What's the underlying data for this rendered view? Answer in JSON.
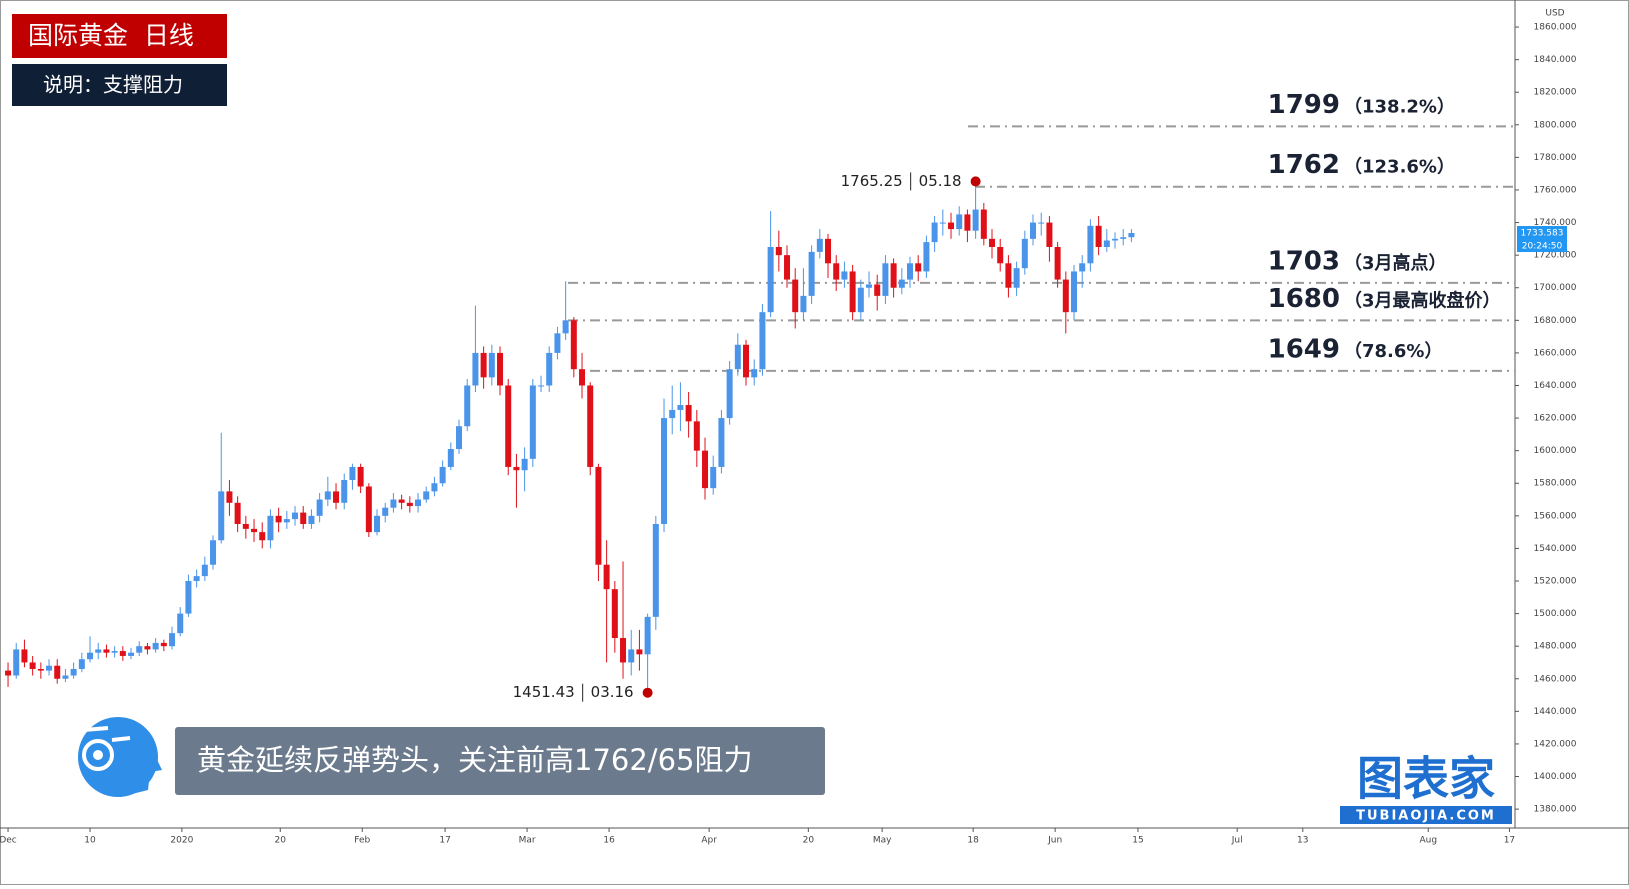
{
  "header": {
    "title": "国际黄金  日线",
    "subtitle": "说明：支撑阻力"
  },
  "chart_data": {
    "type": "candlestick",
    "currency": "USD",
    "up_color": "#4a94ea",
    "down_color": "#e01019",
    "x": [
      0,
      1,
      2,
      3,
      4,
      5,
      6,
      7,
      8,
      9,
      10,
      11,
      12,
      13,
      14,
      15,
      16,
      17,
      18,
      19,
      20,
      21,
      22,
      23,
      24,
      25,
      26,
      27,
      28,
      29,
      30,
      31,
      32,
      33,
      34,
      35,
      36,
      37,
      38,
      39,
      40,
      41,
      42,
      43,
      44,
      45,
      46,
      47,
      48,
      49,
      50,
      51,
      52,
      53,
      54,
      55,
      56,
      57,
      58,
      59,
      60,
      61,
      62,
      63,
      64,
      65,
      66,
      67,
      68,
      69,
      70,
      71,
      72,
      73,
      74,
      75,
      76,
      77,
      78,
      79,
      80,
      81,
      82,
      83,
      84,
      85,
      86,
      87,
      88,
      89,
      90,
      91,
      92,
      93,
      94,
      95,
      96,
      97,
      98,
      99,
      100,
      101,
      102,
      103,
      104,
      105,
      106,
      107,
      108,
      109,
      110,
      111,
      112,
      113,
      114,
      115,
      116,
      117,
      118,
      119,
      120,
      121,
      122,
      123,
      124,
      125,
      126,
      127,
      128,
      129,
      130,
      131,
      132,
      133,
      134,
      135,
      136,
      137
    ],
    "open": [
      1465,
      1462,
      1478,
      1470,
      1466,
      1465,
      1468,
      1460,
      1462,
      1466,
      1472,
      1476,
      1478,
      1476,
      1477,
      1474,
      1476,
      1480,
      1478,
      1482,
      1480,
      1488,
      1500,
      1520,
      1523,
      1530,
      1545,
      1575,
      1568,
      1555,
      1552,
      1550,
      1545,
      1560,
      1556,
      1558,
      1562,
      1555,
      1560,
      1570,
      1575,
      1568,
      1582,
      1590,
      1578,
      1550,
      1560,
      1565,
      1570,
      1568,
      1566,
      1570,
      1575,
      1580,
      1590,
      1601,
      1615,
      1640,
      1660,
      1645,
      1660,
      1640,
      1590,
      1588,
      1595,
      1640,
      1640,
      1660,
      1672,
      1680,
      1650,
      1640,
      1590,
      1530,
      1515,
      1485,
      1470,
      1478,
      1475,
      1498,
      1555,
      1620,
      1625,
      1628,
      1618,
      1600,
      1577,
      1590,
      1620,
      1650,
      1665,
      1645,
      1650,
      1685,
      1725,
      1720,
      1705,
      1685,
      1695,
      1722,
      1730,
      1715,
      1705,
      1710,
      1685,
      1700,
      1702,
      1695,
      1715,
      1700,
      1705,
      1715,
      1710,
      1728,
      1740,
      1740,
      1736,
      1745,
      1735,
      1748,
      1730,
      1725,
      1715,
      1700,
      1712,
      1730,
      1740,
      1740,
      1725,
      1705,
      1685,
      1710,
      1715,
      1738,
      1725,
      1729,
      1730,
      1731
    ],
    "high": [
      1470,
      1482,
      1484,
      1474,
      1470,
      1472,
      1472,
      1466,
      1470,
      1476,
      1486,
      1482,
      1481,
      1480,
      1480,
      1479,
      1483,
      1482,
      1485,
      1484,
      1492,
      1504,
      1524,
      1527,
      1535,
      1548,
      1611,
      1582,
      1572,
      1560,
      1558,
      1556,
      1564,
      1565,
      1563,
      1566,
      1566,
      1564,
      1574,
      1584,
      1580,
      1586,
      1592,
      1592,
      1580,
      1564,
      1568,
      1574,
      1573,
      1572,
      1574,
      1578,
      1584,
      1594,
      1605,
      1619,
      1644,
      1689,
      1664,
      1665,
      1664,
      1644,
      1598,
      1602,
      1644,
      1646,
      1664,
      1676,
      1704,
      1682,
      1660,
      1642,
      1592,
      1545,
      1520,
      1532,
      1490,
      1490,
      1500,
      1560,
      1632,
      1640,
      1642,
      1636,
      1625,
      1608,
      1597,
      1625,
      1655,
      1672,
      1668,
      1656,
      1690,
      1747,
      1735,
      1726,
      1712,
      1712,
      1726,
      1736,
      1733,
      1720,
      1716,
      1714,
      1705,
      1710,
      1708,
      1720,
      1718,
      1712,
      1719,
      1720,
      1732,
      1744,
      1748,
      1746,
      1750,
      1748,
      1765.25,
      1752,
      1736,
      1730,
      1720,
      1716,
      1735,
      1745,
      1746,
      1744,
      1728,
      1710,
      1714,
      1720,
      1742,
      1744,
      1736,
      1734,
      1736,
      1736
    ],
    "low": [
      1455,
      1460,
      1467,
      1462,
      1460,
      1462,
      1457,
      1458,
      1460,
      1464,
      1470,
      1472,
      1473,
      1473,
      1471,
      1472,
      1474,
      1475,
      1476,
      1477,
      1478,
      1486,
      1498,
      1516,
      1520,
      1527,
      1543,
      1560,
      1550,
      1546,
      1544,
      1540,
      1540,
      1550,
      1552,
      1554,
      1552,
      1552,
      1556,
      1566,
      1564,
      1564,
      1576,
      1574,
      1547,
      1548,
      1556,
      1562,
      1564,
      1562,
      1562,
      1568,
      1572,
      1578,
      1588,
      1598,
      1612,
      1636,
      1638,
      1640,
      1634,
      1585,
      1565,
      1575,
      1590,
      1636,
      1636,
      1656,
      1668,
      1645,
      1632,
      1585,
      1520,
      1470,
      1476,
      1460,
      1462,
      1465,
      1451.43,
      1490,
      1550,
      1610,
      1612,
      1608,
      1590,
      1570,
      1573,
      1586,
      1616,
      1646,
      1640,
      1640,
      1646,
      1682,
      1710,
      1700,
      1675,
      1680,
      1690,
      1718,
      1706,
      1698,
      1700,
      1680,
      1680,
      1694,
      1686,
      1690,
      1694,
      1696,
      1700,
      1704,
      1706,
      1722,
      1732,
      1730,
      1732,
      1728,
      1730,
      1726,
      1718,
      1710,
      1694,
      1695,
      1708,
      1726,
      1732,
      1716,
      1700,
      1672,
      1680,
      1700,
      1710,
      1720,
      1722,
      1724,
      1726,
      1728
    ],
    "close": [
      1462,
      1478,
      1470,
      1466,
      1465,
      1468,
      1460,
      1462,
      1466,
      1472,
      1476,
      1478,
      1476,
      1477,
      1474,
      1476,
      1480,
      1478,
      1482,
      1480,
      1488,
      1500,
      1520,
      1523,
      1530,
      1545,
      1575,
      1568,
      1555,
      1552,
      1550,
      1545,
      1560,
      1556,
      1558,
      1562,
      1555,
      1560,
      1570,
      1575,
      1568,
      1582,
      1590,
      1578,
      1550,
      1560,
      1565,
      1570,
      1568,
      1566,
      1570,
      1575,
      1580,
      1590,
      1601,
      1615,
      1640,
      1660,
      1645,
      1660,
      1640,
      1590,
      1588,
      1595,
      1640,
      1640,
      1660,
      1672,
      1680,
      1650,
      1640,
      1590,
      1530,
      1515,
      1485,
      1470,
      1478,
      1475,
      1498,
      1555,
      1620,
      1625,
      1628,
      1618,
      1600,
      1577,
      1590,
      1620,
      1650,
      1665,
      1645,
      1650,
      1685,
      1725,
      1720,
      1705,
      1685,
      1695,
      1722,
      1730,
      1715,
      1705,
      1710,
      1685,
      1700,
      1702,
      1695,
      1715,
      1700,
      1705,
      1715,
      1710,
      1728,
      1740,
      1740,
      1736,
      1745,
      1735,
      1748,
      1730,
      1725,
      1715,
      1700,
      1712,
      1730,
      1740,
      1740,
      1725,
      1705,
      1685,
      1710,
      1715,
      1738,
      1725,
      1729,
      1730,
      1731,
      1733.583
    ],
    "last_time": "20:24:50",
    "xlim": [
      -0.98,
      183.78
    ],
    "xticks": [
      {
        "value": 0,
        "label": "Dec"
      },
      10,
      {
        "value": 21.2,
        "label": "2020"
      },
      {
        "value": 33.2,
        "label": "20"
      },
      {
        "value": 43.2,
        "label": "Feb"
      },
      {
        "value": 53.3,
        "label": "17"
      },
      {
        "value": 63.3,
        "label": "Mar"
      },
      {
        "value": 73.3,
        "label": "16"
      },
      {
        "value": 85.5,
        "label": "Apr"
      },
      {
        "value": 97.6,
        "label": "20"
      },
      {
        "value": 106.6,
        "label": "May"
      },
      {
        "value": 117.7,
        "label": "18"
      },
      {
        "value": 127.7,
        "label": "Jun"
      },
      {
        "value": 137.8,
        "label": "15"
      },
      {
        "value": 149.9,
        "label": "Jul"
      },
      {
        "value": 157.9,
        "label": "13"
      },
      {
        "value": 173.2,
        "label": "Aug"
      },
      {
        "value": 183.1,
        "label": "17"
      }
    ],
    "ylim": [
      1368.4,
      1876.6
    ],
    "yticks": [
      {
        "value": 1380,
        "label": "1380.000"
      },
      {
        "value": 1400,
        "label": "1400.000"
      },
      {
        "value": 1420,
        "label": "1420.000"
      },
      {
        "value": 1440,
        "label": "1440.000"
      },
      {
        "value": 1460,
        "label": "1460.000"
      },
      {
        "value": 1480,
        "label": "1480.000"
      },
      {
        "value": 1500,
        "label": "1500.000"
      },
      {
        "value": 1520,
        "label": "1520.000"
      },
      {
        "value": 1540,
        "label": "1540.000"
      },
      {
        "value": 1560,
        "label": "1560.000"
      },
      {
        "value": 1580,
        "label": "1580.000"
      },
      {
        "value": 1600,
        "label": "1600.000"
      },
      {
        "value": 1620,
        "label": "1620.000"
      },
      {
        "value": 1640,
        "label": "1640.000"
      },
      {
        "value": 1660,
        "label": "1660.000"
      },
      {
        "value": 1680,
        "label": "1680.000"
      },
      {
        "value": 1700,
        "label": "1700.000"
      },
      {
        "value": 1720,
        "label": "1720.000"
      },
      {
        "value": 1740,
        "label": "1740.000"
      },
      {
        "value": 1760,
        "label": "1760.000"
      },
      {
        "value": 1780,
        "label": "1780.000"
      },
      {
        "value": 1800,
        "label": "1800.000"
      },
      {
        "value": 1820,
        "label": "1820.000"
      },
      {
        "value": 1840,
        "label": "1840.000"
      },
      {
        "value": 1860,
        "label": "1860.000"
      }
    ],
    "levels": [
      {
        "value": 1799,
        "note": "（138.2%）"
      },
      {
        "value": 1762,
        "note": "（123.6%）"
      },
      {
        "value": 1703,
        "note": "（3月高点）"
      },
      {
        "value": 1680,
        "note": "（3月最高收盘价）"
      },
      {
        "value": 1649,
        "note": "（78.6%）"
      }
    ],
    "extremes": [
      {
        "value": 1765.25,
        "date": "05.18",
        "x": 118
      },
      {
        "value": 1451.43,
        "date": "03.16",
        "x": 78
      }
    ]
  },
  "caption": "黄金延续反弹势头，关注前高1762/65阻力",
  "logo": {
    "name": "图表家",
    "domain": "TUBIAOJIA.COM"
  }
}
